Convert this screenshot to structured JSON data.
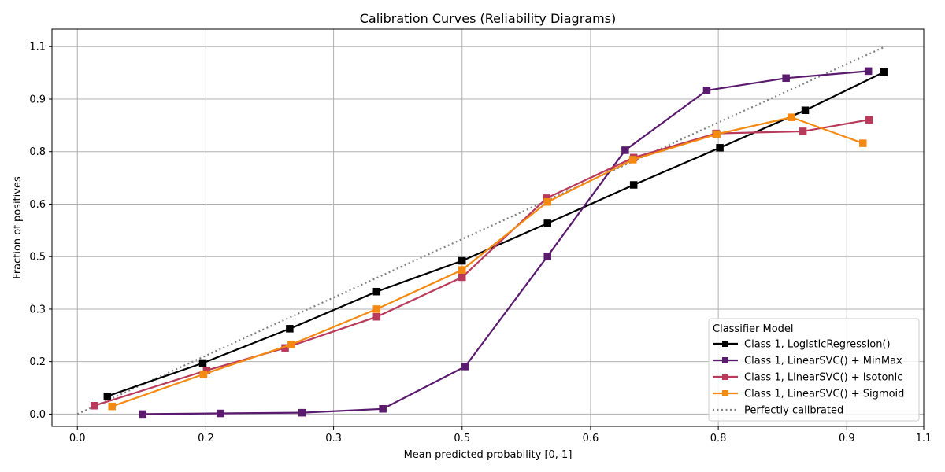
{
  "chart_data": {
    "type": "line",
    "title": "Calibration Curves (Reliability Diagrams)",
    "xlabel": "Mean predicted probability [0, 1]",
    "ylabel": "Fraction of positives",
    "xlim": [
      -0.033,
      1.1
    ],
    "ylim": [
      -0.035,
      1.1
    ],
    "x_ticks": [
      0.0,
      0.167,
      0.333,
      0.5,
      0.667,
      0.833,
      1.0,
      1.1
    ],
    "x_tick_labels": [
      "0.0",
      "0.2",
      "0.3",
      "0.5",
      "0.6",
      "0.8",
      "0.9",
      "1.1"
    ],
    "y_ticks": [
      0.0,
      0.15,
      0.3,
      0.45,
      0.6,
      0.75,
      0.9,
      1.05
    ],
    "y_tick_labels": [
      "0.0",
      "0.2",
      "0.3",
      "0.5",
      "0.6",
      "0.8",
      "0.9",
      "1.1"
    ],
    "grid": true,
    "legend_title": "Classifier Model",
    "legend_position": "lower-right",
    "series": [
      {
        "name": "Class 1, LogisticRegression()",
        "color": "#000000",
        "marker": "square",
        "line": "solid",
        "x": [
          0.039,
          0.163,
          0.276,
          0.389,
          0.5,
          0.611,
          0.723,
          0.835,
          0.946,
          1.048
        ],
        "y": [
          0.051,
          0.146,
          0.244,
          0.35,
          0.438,
          0.545,
          0.655,
          0.761,
          0.868,
          0.977
        ]
      },
      {
        "name": "Class 1, LinearSVC() + MinMax",
        "color": "#5a1a6e",
        "marker": "square",
        "line": "solid",
        "x": [
          0.085,
          0.186,
          0.292,
          0.397,
          0.504,
          0.611,
          0.712,
          0.818,
          0.921,
          1.028
        ],
        "y": [
          0.0,
          0.002,
          0.004,
          0.015,
          0.136,
          0.451,
          0.754,
          0.925,
          0.96,
          0.98
        ]
      },
      {
        "name": "Class 1, LinearSVC() + Isotonic",
        "color": "#b93a5a",
        "marker": "square",
        "line": "solid",
        "x": [
          0.022,
          0.168,
          0.27,
          0.389,
          0.5,
          0.61,
          0.723,
          0.83,
          0.943,
          1.029
        ],
        "y": [
          0.024,
          0.125,
          0.189,
          0.278,
          0.391,
          0.617,
          0.733,
          0.802,
          0.808,
          0.841
        ]
      },
      {
        "name": "Class 1, LinearSVC() + Sigmoid",
        "color": "#f58a12",
        "marker": "square",
        "line": "solid",
        "x": [
          0.045,
          0.164,
          0.278,
          0.389,
          0.5,
          0.611,
          0.722,
          0.831,
          0.928,
          1.021
        ],
        "y": [
          0.022,
          0.114,
          0.199,
          0.3,
          0.412,
          0.606,
          0.727,
          0.8,
          0.848,
          0.774
        ]
      },
      {
        "name": "Perfectly calibrated",
        "color": "#808080",
        "marker": "none",
        "line": "dotted",
        "x": [
          0.0,
          1.05
        ],
        "y": [
          0.0,
          1.05
        ]
      }
    ]
  }
}
